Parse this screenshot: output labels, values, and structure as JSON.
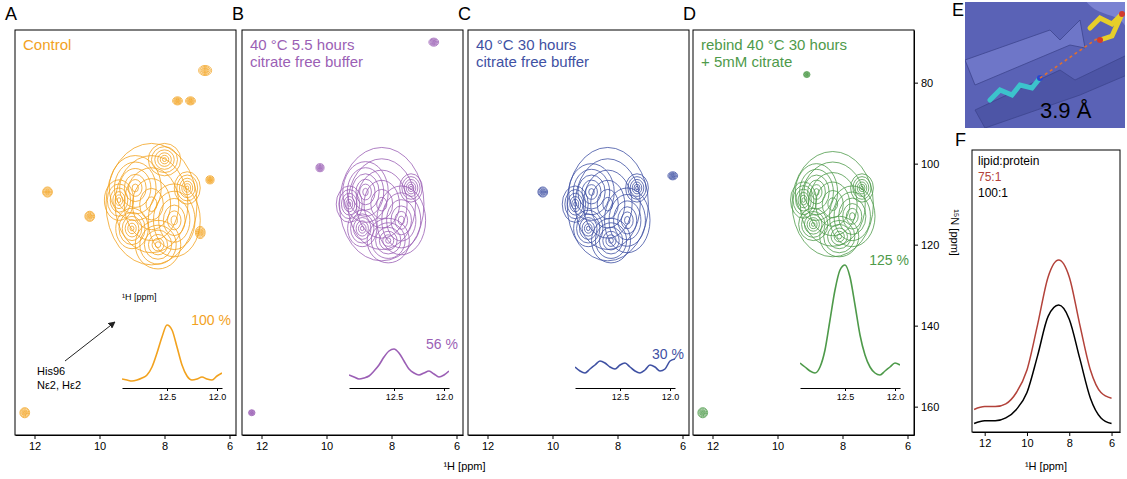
{
  "chart_data": [
    {
      "type": "nmr_2d",
      "label": "A",
      "title": "Control",
      "color": "#F2A21E",
      "xlim": [
        12.6,
        5.8
      ],
      "ylim": [
        67,
        167
      ],
      "xticks": [
        12,
        10,
        8,
        6
      ],
      "tick_labels": "x",
      "peaks": {
        "x": [
          8.4,
          8.9,
          7.7,
          9.4,
          8.2,
          7.3,
          9.0,
          8.0,
          11.6,
          10.3,
          6.75,
          7.6,
          7.2,
          6.9,
          6.6,
          12.3
        ],
        "y": [
          110,
          106,
          114,
          109,
          120,
          106,
          116,
          99,
          107,
          113,
          77,
          84.5,
          84.5,
          117,
          104,
          161.5
        ],
        "width": [
          2.8,
          1.6,
          1.6,
          0.9,
          1.4,
          0.8,
          1.0,
          1.0,
          0.3,
          0.3,
          0.4,
          0.3,
          0.3,
          0.3,
          0.25,
          0.3
        ],
        "height": [
          30,
          16,
          18,
          10,
          12,
          8,
          10,
          8,
          2.5,
          2.5,
          2.5,
          2,
          2,
          3,
          2,
          2.5
        ]
      },
      "annotation": "His96\nNε2, Hε2",
      "inset": {
        "type": "line",
        "xlim": [
          12.95,
          11.95
        ],
        "ylim": [
          0,
          130
        ],
        "tick_labels": "x",
        "xticks": [
          12.5,
          {
            "value": 12,
            "label": "12.0"
          }
        ],
        "xlabel": "¹H [ppm]",
        "annotation": "100 %",
        "x": [
          12.95,
          12.9,
          12.85,
          12.8,
          12.75,
          12.7,
          12.65,
          12.6,
          12.55,
          12.5,
          12.45,
          12.4,
          12.35,
          12.3,
          12.25,
          12.2,
          12.15,
          12.1,
          12.05,
          12.0,
          11.95
        ],
        "values": [
          6,
          5,
          4,
          5,
          7,
          10,
          18,
          32,
          48,
          60,
          55,
          38,
          20,
          9,
          5,
          6,
          8,
          6,
          5,
          9,
          12
        ]
      }
    },
    {
      "type": "nmr_2d",
      "label": "B",
      "title": "40 °C 5.5 hours\ncitrate free buffer",
      "color": "#9B5FB5",
      "xlim": [
        12.6,
        5.8
      ],
      "ylim": [
        67,
        167
      ],
      "xticks": [
        12,
        10,
        8,
        6
      ],
      "tick_labels": "x",
      "peaks": {
        "x": [
          8.3,
          8.8,
          7.7,
          9.3,
          8.1,
          7.4,
          8.9,
          6.7,
          12.3,
          10.2
        ],
        "y": [
          110,
          107,
          114,
          110,
          119,
          106,
          116,
          70,
          161.5,
          101
        ],
        "width": [
          2.6,
          1.4,
          1.5,
          0.8,
          1.3,
          0.7,
          0.9,
          0.3,
          0.2,
          0.25
        ],
        "height": [
          28,
          15,
          17,
          9,
          11,
          7,
          9,
          2,
          1.5,
          2
        ]
      },
      "inset": {
        "type": "line",
        "xlim": [
          12.95,
          11.95
        ],
        "ylim": [
          0,
          130
        ],
        "tick_labels": "x",
        "xticks": [
          12.5,
          {
            "value": 12,
            "label": "12.0"
          }
        ],
        "annotation": "56 %",
        "x": [
          12.95,
          12.9,
          12.85,
          12.8,
          12.75,
          12.7,
          12.65,
          12.6,
          12.55,
          12.5,
          12.45,
          12.4,
          12.35,
          12.3,
          12.25,
          12.2,
          12.15,
          12.1,
          12.05,
          12.0,
          11.95
        ],
        "values": [
          10,
          8,
          6,
          7,
          9,
          14,
          20,
          28,
          34,
          36,
          32,
          24,
          16,
          12,
          10,
          12,
          14,
          11,
          8,
          10,
          14
        ]
      }
    },
    {
      "type": "nmr_2d",
      "label": "C",
      "title": "40 °C 30 hours\ncitrate free buffer",
      "color": "#3F51A3",
      "xlim": [
        12.6,
        5.8
      ],
      "ylim": [
        67,
        167
      ],
      "xticks": [
        12,
        10,
        8,
        6
      ],
      "tick_labels": "x",
      "peaks": {
        "x": [
          8.3,
          8.8,
          7.7,
          9.3,
          8.2,
          7.4,
          8.9,
          10.3,
          6.3
        ],
        "y": [
          110,
          107,
          114,
          110,
          119,
          106,
          116,
          107,
          103
        ],
        "width": [
          2.5,
          1.4,
          1.4,
          0.8,
          1.2,
          0.7,
          0.9,
          0.3,
          0.3
        ],
        "height": [
          28,
          14,
          16,
          9,
          11,
          7,
          9,
          2.5,
          2
        ]
      },
      "inset": {
        "type": "line",
        "xlim": [
          12.95,
          11.95
        ],
        "ylim": [
          0,
          130
        ],
        "tick_labels": "x",
        "xticks": [
          12.5,
          {
            "value": 12,
            "label": "12.0"
          }
        ],
        "annotation": "30 %",
        "x": [
          12.95,
          12.9,
          12.85,
          12.8,
          12.75,
          12.7,
          12.65,
          12.6,
          12.55,
          12.5,
          12.45,
          12.4,
          12.35,
          12.3,
          12.25,
          12.2,
          12.15,
          12.1,
          12.05,
          12.0,
          11.95
        ],
        "values": [
          18,
          14,
          12,
          16,
          20,
          24,
          22,
          18,
          16,
          20,
          22,
          18,
          14,
          12,
          15,
          20,
          18,
          14,
          16,
          24,
          26
        ]
      }
    },
    {
      "type": "nmr_2d",
      "label": "D",
      "title": "rebind 40 °C 30 hours\n+ 5mM citrate",
      "color": "#4E9A4A",
      "xlim": [
        12.6,
        5.8
      ],
      "ylim": [
        67,
        167
      ],
      "xticks": [
        12,
        10,
        8,
        6
      ],
      "tick_labels": true,
      "yticks": [
        80,
        100,
        120,
        140,
        160
      ],
      "xlabel": "¹H [ppm]",
      "ylabel": "¹⁵N [ppm]",
      "peaks": {
        "x": [
          8.3,
          8.8,
          7.7,
          9.2,
          8.1,
          7.4,
          8.9,
          9.1,
          12.3
        ],
        "y": [
          110,
          107,
          113,
          109,
          118,
          106,
          115,
          78,
          161.5
        ],
        "width": [
          2.5,
          1.3,
          1.4,
          0.8,
          1.2,
          0.7,
          0.9,
          0.2,
          0.3
        ],
        "height": [
          26,
          14,
          15,
          9,
          10,
          7,
          8,
          1.5,
          2.5
        ]
      },
      "inset": {
        "type": "line",
        "xlim": [
          12.95,
          11.95
        ],
        "ylim": [
          0,
          130
        ],
        "tick_labels": "x",
        "xticks": [
          12.5,
          {
            "value": 12,
            "label": "12.0"
          }
        ],
        "annotation": "125 %",
        "x": [
          12.95,
          12.9,
          12.85,
          12.8,
          12.75,
          12.7,
          12.65,
          12.6,
          12.55,
          12.5,
          12.45,
          12.4,
          12.35,
          12.3,
          12.25,
          12.2,
          12.15,
          12.1,
          12.05,
          12.0,
          11.95
        ],
        "values": [
          22,
          18,
          14,
          12,
          18,
          35,
          65,
          95,
          115,
          120,
          108,
          80,
          50,
          30,
          18,
          12,
          10,
          14,
          18,
          22,
          20
        ]
      }
    },
    {
      "type": "structure",
      "label": "E",
      "annotation": "3.9 Å"
    },
    {
      "type": "line",
      "label": "F",
      "xlim": [
        12.6,
        5.6
      ],
      "ylim": [
        0,
        100
      ],
      "xticks": [
        12,
        10,
        8,
        6
      ],
      "tick_labels": "x",
      "xlabel": "¹H [ppm]",
      "legend": "top-left",
      "legend_title": "lipid:protein",
      "x": [
        12.5,
        12,
        11.5,
        11,
        10.5,
        10,
        9.5,
        9,
        8.5,
        8,
        7.5,
        7,
        6.5,
        6
      ],
      "series": [
        {
          "name": "75:1",
          "color": "#B3423A",
          "values": [
            8,
            9,
            9,
            10,
            14,
            22,
            38,
            55,
            61,
            55,
            38,
            22,
            14,
            12
          ]
        },
        {
          "name": "100:1",
          "color": "#000000",
          "values": [
            3,
            4,
            4,
            5,
            8,
            14,
            27,
            41,
            45,
            40,
            26,
            12,
            5,
            3
          ]
        }
      ]
    }
  ]
}
